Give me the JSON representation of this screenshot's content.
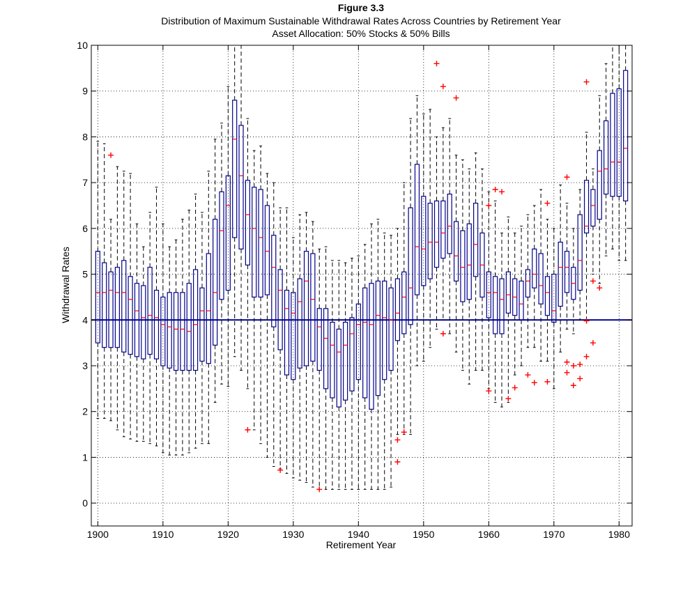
{
  "chart_data": {
    "type": "box",
    "title": "Figure 3.3",
    "subtitle": "Distribution of Maximum Sustainable Withdrawal Rates Across Countries by Retirement Year",
    "subtitle2": "Asset Allocation: 50% Stocks & 50% Bills",
    "xlabel": "Retirement Year",
    "ylabel": "Withdrawal Rates",
    "xlim": [
      1899,
      1982
    ],
    "ylim": [
      -0.5,
      10
    ],
    "xticks": [
      1900,
      1910,
      1920,
      1930,
      1940,
      1950,
      1960,
      1970,
      1980
    ],
    "yticks": [
      0,
      1,
      2,
      3,
      4,
      5,
      6,
      7,
      8,
      9,
      10
    ],
    "grid": true,
    "reference_line": 4,
    "colors": {
      "box": "#00008b",
      "median": "#ff0000",
      "outlier": "#ff0000",
      "whisker": "#000000",
      "reference": "#00008b"
    },
    "boxes": [
      {
        "x": 1900,
        "q1": 3.5,
        "median": 4.6,
        "q3": 5.5,
        "lo": 1.85,
        "hi": 7.9
      },
      {
        "x": 1901,
        "q1": 3.4,
        "median": 4.6,
        "q3": 5.25,
        "lo": 1.85,
        "hi": 7.85
      },
      {
        "x": 1902,
        "q1": 3.4,
        "median": 4.65,
        "q3": 5.05,
        "lo": 1.8,
        "hi": 6.2,
        "outliers": [
          7.6
        ]
      },
      {
        "x": 1903,
        "q1": 3.4,
        "median": 4.6,
        "q3": 5.15,
        "lo": 1.6,
        "hi": 7.35
      },
      {
        "x": 1904,
        "q1": 3.3,
        "median": 4.6,
        "q3": 5.3,
        "lo": 1.45,
        "hi": 7.25
      },
      {
        "x": 1905,
        "q1": 3.25,
        "median": 4.45,
        "q3": 4.95,
        "lo": 1.4,
        "hi": 7.2
      },
      {
        "x": 1906,
        "q1": 3.2,
        "median": 4.2,
        "q3": 4.8,
        "lo": 1.35,
        "hi": 6.1
      },
      {
        "x": 1907,
        "q1": 3.15,
        "median": 4.05,
        "q3": 4.75,
        "lo": 1.35,
        "hi": 5.6
      },
      {
        "x": 1908,
        "q1": 3.25,
        "median": 4.1,
        "q3": 5.15,
        "lo": 1.3,
        "hi": 6.35
      },
      {
        "x": 1909,
        "q1": 3.15,
        "median": 4.05,
        "q3": 4.65,
        "lo": 1.25,
        "hi": 6.9
      },
      {
        "x": 1910,
        "q1": 3.0,
        "median": 3.9,
        "q3": 4.5,
        "lo": 1.1,
        "hi": 6.1
      },
      {
        "x": 1911,
        "q1": 2.95,
        "median": 3.85,
        "q3": 4.6,
        "lo": 1.05,
        "hi": 5.6
      },
      {
        "x": 1912,
        "q1": 2.9,
        "median": 3.8,
        "q3": 4.6,
        "lo": 1.05,
        "hi": 5.75
      },
      {
        "x": 1913,
        "q1": 2.9,
        "median": 3.8,
        "q3": 4.6,
        "lo": 1.05,
        "hi": 6.2
      },
      {
        "x": 1914,
        "q1": 2.9,
        "median": 3.75,
        "q3": 4.8,
        "lo": 1.1,
        "hi": 6.4
      },
      {
        "x": 1915,
        "q1": 2.9,
        "median": 3.9,
        "q3": 5.1,
        "lo": 1.2,
        "hi": 6.75
      },
      {
        "x": 1916,
        "q1": 3.1,
        "median": 4.2,
        "q3": 4.7,
        "lo": 1.3,
        "hi": 6.35
      },
      {
        "x": 1917,
        "q1": 3.05,
        "median": 4.2,
        "q3": 5.45,
        "lo": 1.3,
        "hi": 7.25
      },
      {
        "x": 1918,
        "q1": 3.45,
        "median": 4.6,
        "q3": 6.2,
        "lo": 2.2,
        "hi": 7.95
      },
      {
        "x": 1919,
        "q1": 4.45,
        "median": 5.95,
        "q3": 6.8,
        "lo": 2.6,
        "hi": 8.3
      },
      {
        "x": 1920,
        "q1": 4.65,
        "median": 6.5,
        "q3": 7.15,
        "lo": 2.55,
        "hi": 9.1
      },
      {
        "x": 1921,
        "q1": 5.8,
        "median": 7.95,
        "q3": 8.8,
        "lo": 3.2,
        "hi": 10
      },
      {
        "x": 1922,
        "q1": 5.55,
        "median": 7.15,
        "q3": 8.25,
        "lo": 2.9,
        "hi": 10
      },
      {
        "x": 1923,
        "q1": 5.2,
        "median": 6.3,
        "q3": 7.05,
        "lo": 2.5,
        "hi": 8.4,
        "outliers": [
          1.6
        ]
      },
      {
        "x": 1924,
        "q1": 4.5,
        "median": 6.0,
        "q3": 6.9,
        "lo": 1.6,
        "hi": 7.7
      },
      {
        "x": 1925,
        "q1": 4.5,
        "median": 5.8,
        "q3": 6.85,
        "lo": 1.3,
        "hi": 7.8
      },
      {
        "x": 1926,
        "q1": 4.55,
        "median": 5.5,
        "q3": 6.5,
        "lo": 1.0,
        "hi": 7.2
      },
      {
        "x": 1927,
        "q1": 3.85,
        "median": 5.15,
        "q3": 5.85,
        "lo": 0.8,
        "hi": 7.0
      },
      {
        "x": 1928,
        "q1": 3.35,
        "median": 4.65,
        "q3": 5.1,
        "lo": 0.75,
        "hi": 6.45,
        "outliers": [
          0.72
        ]
      },
      {
        "x": 1929,
        "q1": 2.8,
        "median": 4.25,
        "q3": 4.65,
        "lo": 0.65,
        "hi": 6.45
      },
      {
        "x": 1930,
        "q1": 2.7,
        "median": 4.15,
        "q3": 4.6,
        "lo": 0.55,
        "hi": 5.8
      },
      {
        "x": 1931,
        "q1": 2.95,
        "median": 4.4,
        "q3": 4.9,
        "lo": 0.5,
        "hi": 6.3
      },
      {
        "x": 1932,
        "q1": 3.0,
        "median": 4.85,
        "q3": 5.5,
        "lo": 0.45,
        "hi": 6.35
      },
      {
        "x": 1933,
        "q1": 3.1,
        "median": 4.45,
        "q3": 5.45,
        "lo": 0.35,
        "hi": 6.15
      },
      {
        "x": 1934,
        "q1": 2.9,
        "median": 3.85,
        "q3": 4.25,
        "lo": 0.3,
        "hi": 5.55,
        "outliers": [
          0.3
        ]
      },
      {
        "x": 1935,
        "q1": 2.5,
        "median": 3.6,
        "q3": 4.25,
        "lo": 0.3,
        "hi": 5.6
      },
      {
        "x": 1936,
        "q1": 2.3,
        "median": 3.45,
        "q3": 3.95,
        "lo": 0.3,
        "hi": 5.3
      },
      {
        "x": 1937,
        "q1": 2.1,
        "median": 3.3,
        "q3": 3.8,
        "lo": 0.3,
        "hi": 5.3
      },
      {
        "x": 1938,
        "q1": 2.25,
        "median": 3.45,
        "q3": 3.95,
        "lo": 0.3,
        "hi": 5.25
      },
      {
        "x": 1939,
        "q1": 2.45,
        "median": 3.7,
        "q3": 4.05,
        "lo": 0.3,
        "hi": 5.35
      },
      {
        "x": 1940,
        "q1": 2.7,
        "median": 3.9,
        "q3": 4.35,
        "lo": 0.3,
        "hi": 5.4
      },
      {
        "x": 1941,
        "q1": 2.3,
        "median": 3.95,
        "q3": 4.7,
        "lo": 0.3,
        "hi": 5.65
      },
      {
        "x": 1942,
        "q1": 2.05,
        "median": 3.9,
        "q3": 4.8,
        "lo": 0.3,
        "hi": 6.1
      },
      {
        "x": 1943,
        "q1": 2.35,
        "median": 4.1,
        "q3": 4.85,
        "lo": 0.3,
        "hi": 6.2
      },
      {
        "x": 1944,
        "q1": 2.7,
        "median": 4.05,
        "q3": 4.85,
        "lo": 0.3,
        "hi": 5.9
      },
      {
        "x": 1945,
        "q1": 2.9,
        "median": 4.0,
        "q3": 4.7,
        "lo": 0.35,
        "hi": 5.85
      },
      {
        "x": 1946,
        "q1": 3.55,
        "median": 4.15,
        "q3": 4.9,
        "lo": 1.5,
        "hi": 6.0,
        "outliers": [
          1.38,
          0.9
        ]
      },
      {
        "x": 1947,
        "q1": 3.7,
        "median": 4.5,
        "q3": 5.05,
        "lo": 1.5,
        "hi": 7.0,
        "outliers": [
          1.55
        ]
      },
      {
        "x": 1948,
        "q1": 3.9,
        "median": 4.7,
        "q3": 6.45,
        "lo": 1.5,
        "hi": 8.4
      },
      {
        "x": 1949,
        "q1": 4.55,
        "median": 5.6,
        "q3": 7.4,
        "lo": 3.0,
        "hi": 8.9
      },
      {
        "x": 1950,
        "q1": 4.75,
        "median": 5.55,
        "q3": 6.7,
        "lo": 3.1,
        "hi": 8.5
      },
      {
        "x": 1951,
        "q1": 4.9,
        "median": 5.7,
        "q3": 6.55,
        "lo": 3.4,
        "hi": 8.6
      },
      {
        "x": 1952,
        "q1": 5.15,
        "median": 5.7,
        "q3": 6.6,
        "lo": 3.8,
        "hi": 8.0,
        "outliers": [
          9.6
        ]
      },
      {
        "x": 1953,
        "q1": 5.35,
        "median": 5.9,
        "q3": 6.6,
        "lo": 4.0,
        "hi": 8.2,
        "outliers": [
          9.1,
          3.7
        ]
      },
      {
        "x": 1954,
        "q1": 5.45,
        "median": 6.05,
        "q3": 6.75,
        "lo": 3.7,
        "hi": 8.4
      },
      {
        "x": 1955,
        "q1": 4.85,
        "median": 5.4,
        "q3": 6.15,
        "lo": 3.3,
        "hi": 7.6,
        "outliers": [
          8.85
        ]
      },
      {
        "x": 1956,
        "q1": 4.4,
        "median": 5.15,
        "q3": 5.95,
        "lo": 2.9,
        "hi": 7.5
      },
      {
        "x": 1957,
        "q1": 4.45,
        "median": 5.2,
        "q3": 6.1,
        "lo": 2.6,
        "hi": 7.3
      },
      {
        "x": 1958,
        "q1": 4.95,
        "median": 5.65,
        "q3": 6.55,
        "lo": 2.9,
        "hi": 7.65
      },
      {
        "x": 1959,
        "q1": 4.5,
        "median": 5.2,
        "q3": 5.9,
        "lo": 2.9,
        "hi": 7.3
      },
      {
        "x": 1960,
        "q1": 4.05,
        "median": 4.6,
        "q3": 5.05,
        "lo": 2.5,
        "hi": 6.8,
        "outliers": [
          6.5,
          2.45
        ]
      },
      {
        "x": 1961,
        "q1": 3.7,
        "median": 4.6,
        "q3": 4.95,
        "lo": 2.2,
        "hi": 6.6,
        "outliers": [
          6.85
        ]
      },
      {
        "x": 1962,
        "q1": 3.7,
        "median": 4.45,
        "q3": 4.9,
        "lo": 2.1,
        "hi": 5.9,
        "outliers": [
          6.8
        ]
      },
      {
        "x": 1963,
        "q1": 4.15,
        "median": 4.55,
        "q3": 5.05,
        "lo": 2.2,
        "hi": 6.25,
        "outliers": [
          2.28
        ]
      },
      {
        "x": 1964,
        "q1": 4.1,
        "median": 4.5,
        "q3": 4.9,
        "lo": 2.8,
        "hi": 5.9,
        "outliers": [
          2.52
        ]
      },
      {
        "x": 1965,
        "q1": 4.0,
        "median": 4.35,
        "q3": 4.85,
        "lo": 3.0,
        "hi": 6.05
      },
      {
        "x": 1966,
        "q1": 4.5,
        "median": 4.85,
        "q3": 5.1,
        "lo": 3.4,
        "hi": 6.3,
        "outliers": [
          2.8
        ]
      },
      {
        "x": 1967,
        "q1": 4.7,
        "median": 5.0,
        "q3": 5.55,
        "lo": 3.4,
        "hi": 6.5,
        "outliers": [
          2.63
        ]
      },
      {
        "x": 1968,
        "q1": 4.35,
        "median": 4.75,
        "q3": 5.45,
        "lo": 3.1,
        "hi": 6.85
      },
      {
        "x": 1969,
        "q1": 4.1,
        "median": 4.6,
        "q3": 4.95,
        "lo": 3.1,
        "hi": 6.2,
        "outliers": [
          6.55,
          2.65
        ]
      },
      {
        "x": 1970,
        "q1": 3.95,
        "median": 4.2,
        "q3": 5.0,
        "lo": 2.5,
        "hi": 6.0
      },
      {
        "x": 1971,
        "q1": 4.3,
        "median": 5.15,
        "q3": 5.7,
        "lo": 3.3,
        "hi": 6.95
      },
      {
        "x": 1972,
        "q1": 4.6,
        "median": 5.15,
        "q3": 5.5,
        "lo": 3.8,
        "hi": 6.55,
        "outliers": [
          7.12,
          3.08,
          2.85
        ]
      },
      {
        "x": 1973,
        "q1": 4.45,
        "median": 4.8,
        "q3": 5.15,
        "lo": 3.7,
        "hi": 6.0,
        "outliers": [
          3.0,
          2.57
        ]
      },
      {
        "x": 1974,
        "q1": 4.65,
        "median": 5.3,
        "q3": 6.3,
        "lo": 4.0,
        "hi": 6.85,
        "outliers": [
          3.03,
          2.72
        ]
      },
      {
        "x": 1975,
        "q1": 5.9,
        "median": 6.05,
        "q3": 7.05,
        "lo": 4.0,
        "hi": 8.1,
        "outliers": [
          9.2,
          3.98,
          3.2
        ]
      },
      {
        "x": 1976,
        "q1": 6.05,
        "median": 6.5,
        "q3": 6.85,
        "lo": 5.0,
        "hi": 7.3,
        "outliers": [
          4.85,
          3.5
        ]
      },
      {
        "x": 1977,
        "q1": 6.2,
        "median": 7.25,
        "q3": 7.7,
        "lo": 4.8,
        "hi": 8.9,
        "outliers": [
          4.7
        ]
      },
      {
        "x": 1978,
        "q1": 6.75,
        "median": 7.3,
        "q3": 8.35,
        "lo": 5.4,
        "hi": 9.6
      },
      {
        "x": 1979,
        "q1": 6.7,
        "median": 7.45,
        "q3": 8.95,
        "lo": 5.55,
        "hi": 10
      },
      {
        "x": 1980,
        "q1": 6.7,
        "median": 7.45,
        "q3": 9.05,
        "lo": 5.3,
        "hi": 10
      },
      {
        "x": 1981,
        "q1": 6.6,
        "median": 7.75,
        "q3": 9.45,
        "lo": 5.3,
        "hi": 10
      }
    ]
  }
}
